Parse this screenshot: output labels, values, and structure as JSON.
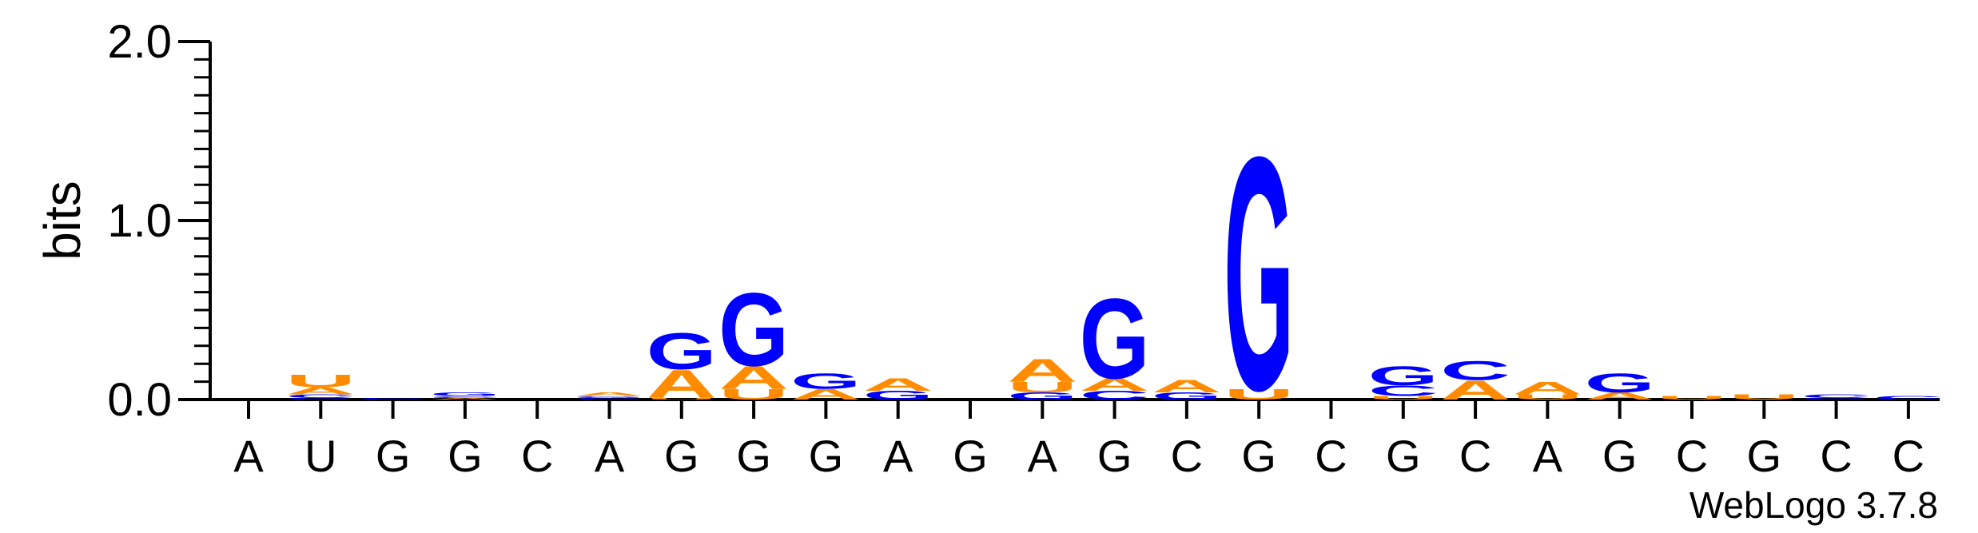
{
  "chart_data": {
    "type": "sequence-logo",
    "ylabel": "bits",
    "ylim": [
      0,
      2.0
    ],
    "yticks": [
      "0.0",
      "1.0",
      "2.0"
    ],
    "x_labels": [
      "A",
      "U",
      "G",
      "G",
      "C",
      "A",
      "G",
      "G",
      "G",
      "A",
      "G",
      "A",
      "G",
      "C",
      "G",
      "C",
      "G",
      "C",
      "A",
      "G",
      "C",
      "G",
      "C",
      "C"
    ],
    "colors": {
      "A": "#ff8c00",
      "U": "#ff8c00",
      "G": "#0000ff",
      "C": "#0000ff"
    },
    "columns": [
      {
        "position": 1,
        "stack": []
      },
      {
        "position": 2,
        "stack": [
          {
            "letter": "G",
            "height": 0.01
          },
          {
            "letter": "C",
            "height": 0.02
          },
          {
            "letter": "A",
            "height": 0.04
          },
          {
            "letter": "U",
            "height": 0.07
          }
        ]
      },
      {
        "position": 3,
        "stack": [
          {
            "letter": "C",
            "height": 0.01
          }
        ]
      },
      {
        "position": 4,
        "stack": [
          {
            "letter": "A",
            "height": 0.01
          },
          {
            "letter": "C",
            "height": 0.01
          },
          {
            "letter": "G",
            "height": 0.02
          }
        ]
      },
      {
        "position": 5,
        "stack": []
      },
      {
        "position": 6,
        "stack": [
          {
            "letter": "C",
            "height": 0.01
          },
          {
            "letter": "G",
            "height": 0.01
          },
          {
            "letter": "A",
            "height": 0.02
          }
        ]
      },
      {
        "position": 7,
        "stack": [
          {
            "letter": "U",
            "height": 0.01
          },
          {
            "letter": "A",
            "height": 0.16
          },
          {
            "letter": "G",
            "height": 0.21
          }
        ]
      },
      {
        "position": 8,
        "stack": [
          {
            "letter": "U",
            "height": 0.06
          },
          {
            "letter": "A",
            "height": 0.13
          },
          {
            "letter": "G",
            "height": 0.42
          }
        ]
      },
      {
        "position": 9,
        "stack": [
          {
            "letter": "A",
            "height": 0.06
          },
          {
            "letter": "G",
            "height": 0.09
          }
        ]
      },
      {
        "position": 10,
        "stack": [
          {
            "letter": "G",
            "height": 0.05
          },
          {
            "letter": "A",
            "height": 0.07
          }
        ]
      },
      {
        "position": 11,
        "stack": []
      },
      {
        "position": 12,
        "stack": [
          {
            "letter": "G",
            "height": 0.04
          },
          {
            "letter": "U",
            "height": 0.06
          },
          {
            "letter": "A",
            "height": 0.13
          }
        ]
      },
      {
        "position": 13,
        "stack": [
          {
            "letter": "C",
            "height": 0.05
          },
          {
            "letter": "A",
            "height": 0.07
          },
          {
            "letter": "G",
            "height": 0.46
          }
        ]
      },
      {
        "position": 14,
        "stack": [
          {
            "letter": "G",
            "height": 0.04
          },
          {
            "letter": "A",
            "height": 0.07
          }
        ]
      },
      {
        "position": 15,
        "stack": [
          {
            "letter": "U",
            "height": 0.06
          },
          {
            "letter": "G",
            "height": 1.34
          }
        ]
      },
      {
        "position": 16,
        "stack": []
      },
      {
        "position": 17,
        "stack": [
          {
            "letter": "U",
            "height": 0.02
          },
          {
            "letter": "C",
            "height": 0.06
          },
          {
            "letter": "G",
            "height": 0.11
          }
        ]
      },
      {
        "position": 18,
        "stack": [
          {
            "letter": "A",
            "height": 0.11
          },
          {
            "letter": "C",
            "height": 0.11
          }
        ]
      },
      {
        "position": 19,
        "stack": [
          {
            "letter": "U",
            "height": 0.03
          },
          {
            "letter": "A",
            "height": 0.07
          }
        ]
      },
      {
        "position": 20,
        "stack": [
          {
            "letter": "A",
            "height": 0.04
          },
          {
            "letter": "G",
            "height": 0.11
          }
        ]
      },
      {
        "position": 21,
        "stack": [
          {
            "letter": "U",
            "height": 0.02
          }
        ]
      },
      {
        "position": 22,
        "stack": [
          {
            "letter": "U",
            "height": 0.03
          }
        ]
      },
      {
        "position": 23,
        "stack": [
          {
            "letter": "G",
            "height": 0.01
          },
          {
            "letter": "C",
            "height": 0.02
          }
        ]
      },
      {
        "position": 24,
        "stack": [
          {
            "letter": "C",
            "height": 0.02
          }
        ]
      }
    ]
  },
  "footer": {
    "version_text": "WebLogo 3.7.8"
  }
}
